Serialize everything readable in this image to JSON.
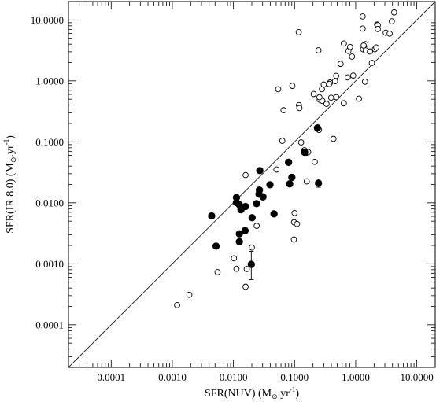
{
  "chart_data": {
    "type": "scatter",
    "xscale": "log",
    "yscale": "log",
    "xlim": [
      2e-05,
      20
    ],
    "ylim": [
      2e-05,
      20
    ],
    "grid": false,
    "legend": "none",
    "xlabel": "SFR(NUV) (M⊙.yr⁻¹)",
    "ylabel": "SFR(IR 8.0) (M⊙.yr⁻¹)",
    "xlabel_parts": {
      "main": "SFR(NUV) (M",
      "sub": "⊙",
      "mid": ".yr",
      "sup": "-1",
      "end": ")"
    },
    "ylabel_parts": {
      "main": "SFR(IR 8.0) (M",
      "sub": "⊙",
      "mid": ".yr",
      "sup": "-1",
      "end": ")"
    },
    "x_ticks": [
      {
        "value": 0.0001,
        "label": "0.0001"
      },
      {
        "value": 0.001,
        "label": "0.0010"
      },
      {
        "value": 0.01,
        "label": "0.0100"
      },
      {
        "value": 0.1,
        "label": "0.1000"
      },
      {
        "value": 1,
        "label": "1.0000"
      },
      {
        "value": 10,
        "label": "10.0000"
      }
    ],
    "y_ticks": [
      {
        "value": 0.0001,
        "label": "0.0001"
      },
      {
        "value": 0.001,
        "label": "0.0010"
      },
      {
        "value": 0.01,
        "label": "0.0100"
      },
      {
        "value": 0.1,
        "label": "0.1000"
      },
      {
        "value": 1,
        "label": "1.0000"
      },
      {
        "value": 10,
        "label": "10.0000"
      }
    ],
    "reference_line": {
      "type": "one-to-one",
      "from": [
        2e-05,
        2e-05
      ],
      "to": [
        20,
        20
      ]
    },
    "series": [
      {
        "marker": "open-circle",
        "points": [
          [
            0.0012,
            0.00021
          ],
          [
            0.0019,
            0.00031
          ],
          [
            0.0055,
            0.00073
          ],
          [
            0.0102,
            0.00123
          ],
          [
            0.0112,
            0.00083
          ],
          [
            0.0158,
            0.00042
          ],
          [
            0.0165,
            0.00082
          ],
          [
            0.0195,
            0.00098
          ],
          [
            0.02,
            0.00185
          ],
          [
            0.024,
            0.0042
          ],
          [
            0.0158,
            0.0285
          ],
          [
            0.0975,
            0.0025
          ],
          [
            0.1,
            0.0068
          ],
          [
            0.098,
            0.0048
          ],
          [
            0.1098,
            0.0045
          ],
          [
            0.0505,
            0.0352
          ],
          [
            0.145,
            0.073
          ],
          [
            0.156,
            0.066
          ],
          [
            0.158,
            0.0225
          ],
          [
            0.214,
            0.047
          ],
          [
            0.128,
            0.098
          ],
          [
            0.167,
            0.068
          ],
          [
            0.063,
            0.104
          ],
          [
            0.251,
            0.157
          ],
          [
            0.433,
            0.112
          ],
          [
            0.066,
            0.33
          ],
          [
            0.118,
            0.4
          ],
          [
            0.12,
            0.358
          ],
          [
            0.205,
            0.61
          ],
          [
            0.054,
            0.73
          ],
          [
            0.092,
            0.83
          ],
          [
            0.258,
            0.49
          ],
          [
            0.285,
            0.47
          ],
          [
            0.255,
            0.54
          ],
          [
            0.333,
            0.42
          ],
          [
            0.396,
            0.53
          ],
          [
            0.483,
            0.54
          ],
          [
            0.64,
            0.43
          ],
          [
            1.13,
            0.51
          ],
          [
            1.42,
            0.97
          ],
          [
            0.28,
            0.73
          ],
          [
            0.3,
            0.87
          ],
          [
            0.38,
            0.94
          ],
          [
            0.46,
            0.99
          ],
          [
            0.48,
            1.21
          ],
          [
            0.37,
            0.89
          ],
          [
            0.74,
            1.14
          ],
          [
            0.91,
            1.22
          ],
          [
            1.84,
            1.97
          ],
          [
            2.06,
            3.31
          ],
          [
            2.17,
            3.53
          ],
          [
            0.64,
            4.1
          ],
          [
            0.76,
            3.1
          ],
          [
            0.81,
            3.6
          ],
          [
            0.87,
            2.5
          ],
          [
            1.32,
            3.3
          ],
          [
            1.44,
            3.99
          ],
          [
            1.46,
            3.16
          ],
          [
            1.71,
            3.03
          ],
          [
            1.3,
            7.2
          ],
          [
            1.3,
            11.4
          ],
          [
            2.24,
            8.4
          ],
          [
            2.3,
            8.2
          ],
          [
            2.3,
            7.1
          ],
          [
            3.1,
            6.16
          ],
          [
            3.59,
            5.95
          ],
          [
            3.9,
            9.5
          ],
          [
            4.25,
            13.3
          ],
          [
            0.117,
            6.3
          ],
          [
            0.246,
            3.17
          ],
          [
            0.566,
            1.9
          ],
          [
            1.35,
            3.8
          ]
        ]
      },
      {
        "marker": "filled-circle",
        "points": [
          [
            0.0044,
            0.0061
          ],
          [
            0.0052,
            0.00195
          ],
          [
            0.0125,
            0.0023
          ],
          [
            0.0125,
            0.0031
          ],
          [
            0.0155,
            0.0035
          ],
          [
            0.0112,
            0.0122
          ],
          [
            0.0112,
            0.0101
          ],
          [
            0.0125,
            0.0093
          ],
          [
            0.0133,
            0.0077
          ],
          [
            0.0158,
            0.0087
          ],
          [
            0.0202,
            0.0057
          ],
          [
            0.0239,
            0.0097
          ],
          [
            0.0196,
            0.00098
          ],
          [
            0.027,
            0.0338
          ],
          [
            0.0262,
            0.0139
          ],
          [
            0.0266,
            0.0162
          ],
          [
            0.0305,
            0.0125
          ],
          [
            0.0396,
            0.0198
          ],
          [
            0.0461,
            0.0066
          ],
          [
            0.0798,
            0.0462
          ],
          [
            0.0833,
            0.0205
          ],
          [
            0.0903,
            0.0262
          ],
          [
            0.146,
            0.0675
          ],
          [
            0.237,
            0.169
          ],
          [
            0.246,
            0.021
          ]
        ]
      }
    ],
    "error_bars": [
      {
        "x": 0.0196,
        "y": 0.00098,
        "ylow": 0.00055,
        "yhigh": 0.0016
      },
      {
        "x": 0.246,
        "y": 0.021,
        "ylow": 0.018,
        "yhigh": 0.0245
      }
    ]
  }
}
